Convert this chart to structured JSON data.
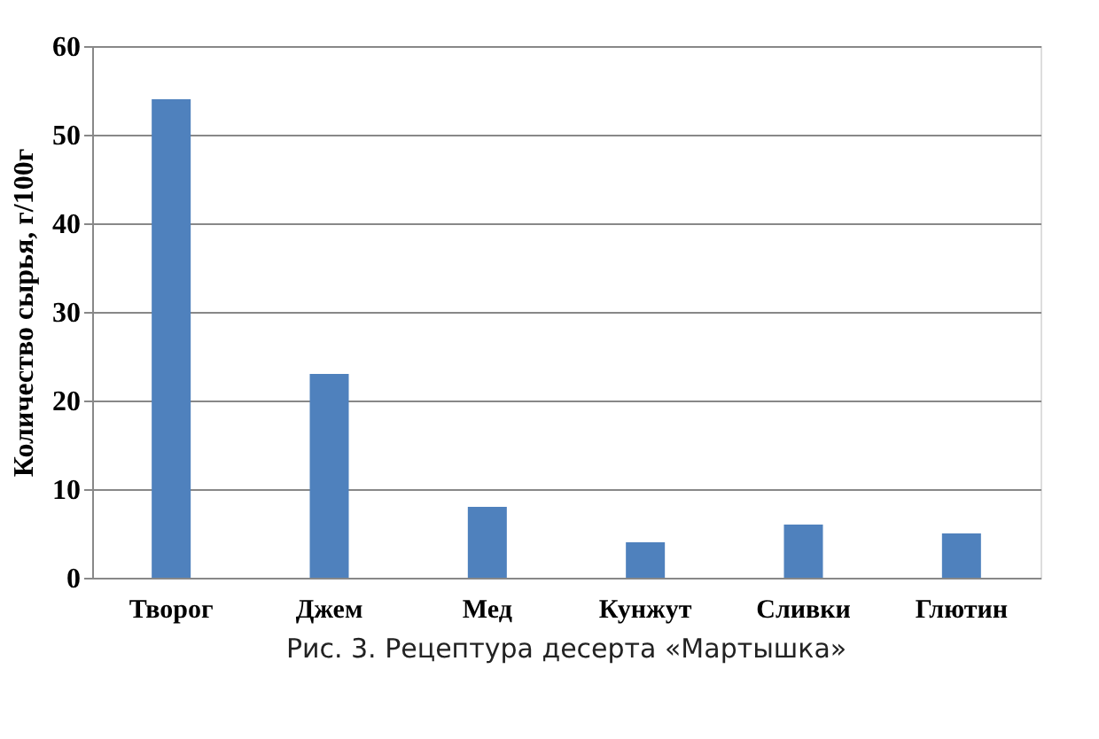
{
  "chart_data": {
    "type": "bar",
    "ylabel": "Количество сырья, г/100г",
    "categories": [
      "Творог",
      "Джем",
      "Мед",
      "Кунжут",
      "Сливки",
      "Глютин"
    ],
    "values": [
      54,
      23,
      8,
      4,
      6,
      5
    ],
    "color": "#4f81bd",
    "ylim": [
      0,
      60
    ],
    "yticks": [
      0,
      10,
      20,
      30,
      40,
      50,
      60
    ],
    "grid": "y",
    "annotations": [
      "Рис. 3. Рецептура десерта «Мартышка»"
    ]
  }
}
